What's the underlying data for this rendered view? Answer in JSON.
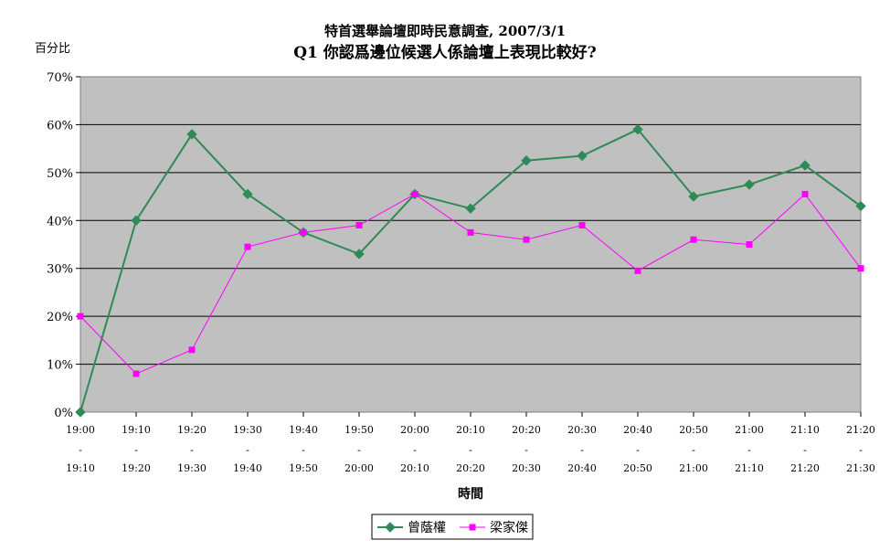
{
  "chart_data": {
    "type": "line",
    "title": "特首選舉論壇即時民意調查, 2007/3/1",
    "subtitle": "Q1 你認爲邊位候選人係論壇上表現比較好?",
    "ylabel": "百分比",
    "xlabel": "時間",
    "ylim": [
      0,
      70
    ],
    "yticks": [
      "0%",
      "10%",
      "20%",
      "30%",
      "40%",
      "50%",
      "60%",
      "70%"
    ],
    "ytick_values": [
      0,
      10,
      20,
      30,
      40,
      50,
      60,
      70
    ],
    "categories": [
      {
        "start": "19:00",
        "dash": "-",
        "end": "19:10"
      },
      {
        "start": "19:10",
        "dash": "-",
        "end": "19:20"
      },
      {
        "start": "19:20",
        "dash": "-",
        "end": "19:30"
      },
      {
        "start": "19:30",
        "dash": "-",
        "end": "19:40"
      },
      {
        "start": "19:40",
        "dash": "-",
        "end": "19:50"
      },
      {
        "start": "19:50",
        "dash": "-",
        "end": "20:00"
      },
      {
        "start": "20:00",
        "dash": "-",
        "end": "20:10"
      },
      {
        "start": "20:10",
        "dash": "-",
        "end": "20:20"
      },
      {
        "start": "20:20",
        "dash": "-",
        "end": "20:30"
      },
      {
        "start": "20:30",
        "dash": "-",
        "end": "20:40"
      },
      {
        "start": "20:40",
        "dash": "-",
        "end": "20:50"
      },
      {
        "start": "20:50",
        "dash": "-",
        "end": "21:00"
      },
      {
        "start": "21:00",
        "dash": "-",
        "end": "21:10"
      },
      {
        "start": "21:10",
        "dash": "-",
        "end": "21:20"
      },
      {
        "start": "21:20",
        "dash": "-",
        "end": "21:30"
      }
    ],
    "series": [
      {
        "name": "曾蔭權",
        "color": "#2E8B57",
        "marker": "diamond",
        "values": [
          0,
          40,
          58,
          45.5,
          37.5,
          33,
          45.5,
          42.5,
          52.5,
          53.5,
          59,
          45,
          47.5,
          51.5,
          43
        ]
      },
      {
        "name": "梁家傑",
        "color": "#FF00FF",
        "marker": "square",
        "values": [
          20,
          8,
          13,
          34.5,
          37.5,
          39,
          45.5,
          37.5,
          36,
          39,
          29.5,
          36,
          35,
          45.5,
          30
        ]
      }
    ],
    "plot_background": "#C0C0C0",
    "grid": true,
    "legend_position": "bottom-center"
  }
}
